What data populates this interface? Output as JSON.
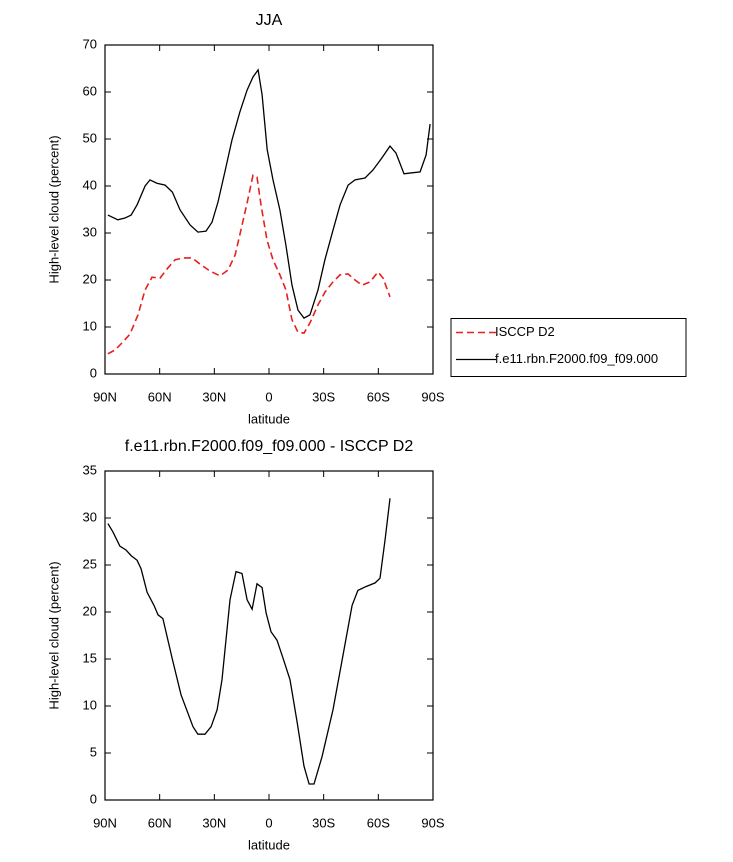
{
  "chart_data": [
    {
      "type": "line",
      "title": "JJA",
      "xlabel": "latitude",
      "ylabel": "High-level cloud (percent)",
      "xlim": [
        90,
        -90
      ],
      "ylim": [
        0,
        70
      ],
      "xticks": [
        {
          "value": 90,
          "label": "90N"
        },
        {
          "value": 60,
          "label": "60N"
        },
        {
          "value": 30,
          "label": "30N"
        },
        0,
        {
          "value": -30,
          "label": "30S"
        },
        {
          "value": -60,
          "label": "60S"
        },
        {
          "value": -90,
          "label": "90S"
        }
      ],
      "yticks": [
        0,
        10,
        20,
        30,
        40,
        50,
        60,
        70
      ],
      "legend": "right",
      "series": [
        {
          "name": "ISCCP D2",
          "color": "#e8201e",
          "dashed": true,
          "x": [
            88.4,
            84.5,
            80.7,
            76.3,
            71.9,
            68,
            64.2,
            59.8,
            55.4,
            51.6,
            47.2,
            42.2,
            37.9,
            32.4,
            26.9,
            22.5,
            18.6,
            15.4,
            12,
            8.8,
            6.6,
            4.4,
            1.1,
            -2.2,
            -6,
            -9.3,
            -12.6,
            -15.9,
            -19.2,
            -22.5,
            -26.9,
            -30.7,
            -35.1,
            -39,
            -43.4,
            -47.2,
            -51,
            -55.4,
            -59.8,
            -62.6,
            -66.4
          ],
          "values": [
            4.3,
            5.1,
            6.6,
            8.5,
            12.6,
            17.9,
            20.6,
            20.4,
            22.6,
            24.3,
            24.7,
            24.7,
            23.4,
            21.9,
            20.9,
            22.1,
            25.3,
            30.6,
            36.4,
            42.3,
            41.9,
            36,
            28.5,
            24.3,
            21.1,
            17.9,
            11.5,
            8.9,
            8.7,
            10.9,
            14.7,
            17.4,
            19.6,
            21.1,
            21.3,
            20,
            18.9,
            19.6,
            21.7,
            20.4,
            16.4
          ]
        },
        {
          "name": "f.e11.rbn.F2000.f09_f09.000",
          "color": "#000000",
          "dashed": false,
          "x": [
            88.4,
            83,
            79,
            75.7,
            72.4,
            68,
            65.3,
            61.5,
            57,
            53,
            48.8,
            43.3,
            39,
            34.6,
            31.3,
            28,
            24,
            20.3,
            16,
            12,
            8.8,
            6,
            3.8,
            1,
            -2.2,
            -6,
            -9.3,
            -12.6,
            -15.9,
            -19.2,
            -22.5,
            -26.9,
            -30.7,
            -35.1,
            -39,
            -43.4,
            -47.2,
            -52.7,
            -57.1,
            -62,
            -66.4,
            -69.7,
            -74.1,
            -78.5,
            -82.9,
            -86.2,
            -88.4
          ],
          "values": [
            33.8,
            32.8,
            33.2,
            33.8,
            36,
            40,
            41.3,
            40.6,
            40.2,
            38.7,
            34.9,
            31.7,
            30.2,
            30.4,
            32.3,
            36.6,
            43.4,
            49.8,
            55.7,
            60.4,
            63.2,
            64.7,
            59.4,
            47.7,
            41.3,
            34.9,
            27.4,
            18.9,
            13.6,
            11.9,
            12.6,
            17.9,
            24.3,
            30.6,
            36,
            40.2,
            41.3,
            41.7,
            43.4,
            46,
            48.5,
            47,
            42.6,
            42.8,
            43,
            46.6,
            53.2
          ]
        }
      ]
    },
    {
      "type": "line",
      "title": "f.e11.rbn.F2000.f09_f09.000 - ISCCP D2",
      "xlabel": "latitude",
      "ylabel": "High-level cloud (percent)",
      "xlim": [
        90,
        -90
      ],
      "ylim": [
        0,
        35
      ],
      "xticks": [
        {
          "value": 90,
          "label": "90N"
        },
        {
          "value": 60,
          "label": "60N"
        },
        {
          "value": 30,
          "label": "30N"
        },
        0,
        {
          "value": -30,
          "label": "30S"
        },
        {
          "value": -60,
          "label": "60S"
        },
        {
          "value": -90,
          "label": "90S"
        }
      ],
      "yticks": [
        0,
        5,
        10,
        15,
        20,
        25,
        30,
        35
      ],
      "series": [
        {
          "color": "#000000",
          "dashed": false,
          "x": [
            88.4,
            85.6,
            81.8,
            78.5,
            75.7,
            72.4,
            70.2,
            66.9,
            63.1,
            60.9,
            58.2,
            53.2,
            48.3,
            41.7,
            39,
            35.1,
            31.8,
            28.5,
            25.8,
            21.4,
            18.1,
            14.8,
            12,
            9.3,
            6.6,
            3.8,
            1.6,
            -1.1,
            -4.4,
            -7.7,
            -11.5,
            -15.4,
            -19.2,
            -22,
            -24.7,
            -29.1,
            -35.1,
            -40.6,
            -45.6,
            -48.8,
            -53.2,
            -58.2,
            -60.9,
            -63.7,
            -66.4
          ],
          "values": [
            29.4,
            28.5,
            27,
            26.6,
            26,
            25.5,
            24.6,
            22.1,
            20.7,
            19.7,
            19.3,
            15.1,
            11.2,
            7.8,
            7,
            7,
            7.8,
            9.6,
            12.8,
            21.3,
            24.3,
            24.1,
            21.3,
            20.3,
            23,
            22.6,
            19.9,
            17.9,
            17,
            15.1,
            12.8,
            8.3,
            3.6,
            1.7,
            1.7,
            4.6,
            9.6,
            15.4,
            20.7,
            22.3,
            22.7,
            23.1,
            23.6,
            27.7,
            32.1
          ]
        }
      ]
    }
  ]
}
